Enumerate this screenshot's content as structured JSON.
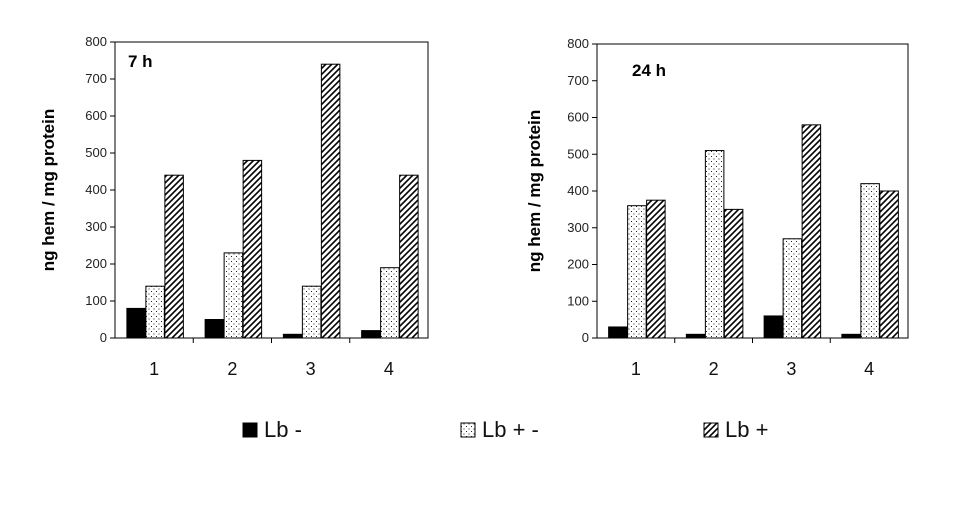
{
  "legend": [
    {
      "label": "Lb -",
      "pattern": "solid"
    },
    {
      "label": "Lb + -",
      "pattern": "dots"
    },
    {
      "label": "Lb +",
      "pattern": "hatch"
    }
  ],
  "colors": {
    "bar_fill": "#000000",
    "background": "#ffffff",
    "axis": "#000000"
  },
  "chart_data": [
    {
      "type": "bar",
      "title": "7 h",
      "ylabel": "ng hem / mg protein",
      "xlabel": "",
      "categories": [
        "1",
        "2",
        "3",
        "4"
      ],
      "ylim": [
        0,
        800
      ],
      "yticks": [
        "0",
        "100",
        "200",
        "300",
        "400",
        "500",
        "600",
        "700",
        "800"
      ],
      "series": [
        {
          "name": "Lb -",
          "values": [
            80,
            50,
            10,
            20
          ]
        },
        {
          "name": "Lb + -",
          "values": [
            140,
            230,
            140,
            190
          ]
        },
        {
          "name": "Lb +",
          "values": [
            440,
            480,
            740,
            440
          ]
        }
      ],
      "grid": false,
      "legend_position": "bottom"
    },
    {
      "type": "bar",
      "title": "24 h",
      "ylabel": "ng hem / mg protein",
      "xlabel": "",
      "categories": [
        "1",
        "2",
        "3",
        "4"
      ],
      "ylim": [
        0,
        800
      ],
      "yticks": [
        "0",
        "100",
        "200",
        "300",
        "400",
        "500",
        "600",
        "700",
        "800"
      ],
      "series": [
        {
          "name": "Lb -",
          "values": [
            30,
            10,
            60,
            10
          ]
        },
        {
          "name": "Lb + -",
          "values": [
            360,
            510,
            270,
            420
          ]
        },
        {
          "name": "Lb +",
          "values": [
            375,
            350,
            580,
            400
          ]
        }
      ],
      "grid": false,
      "legend_position": "bottom"
    }
  ]
}
